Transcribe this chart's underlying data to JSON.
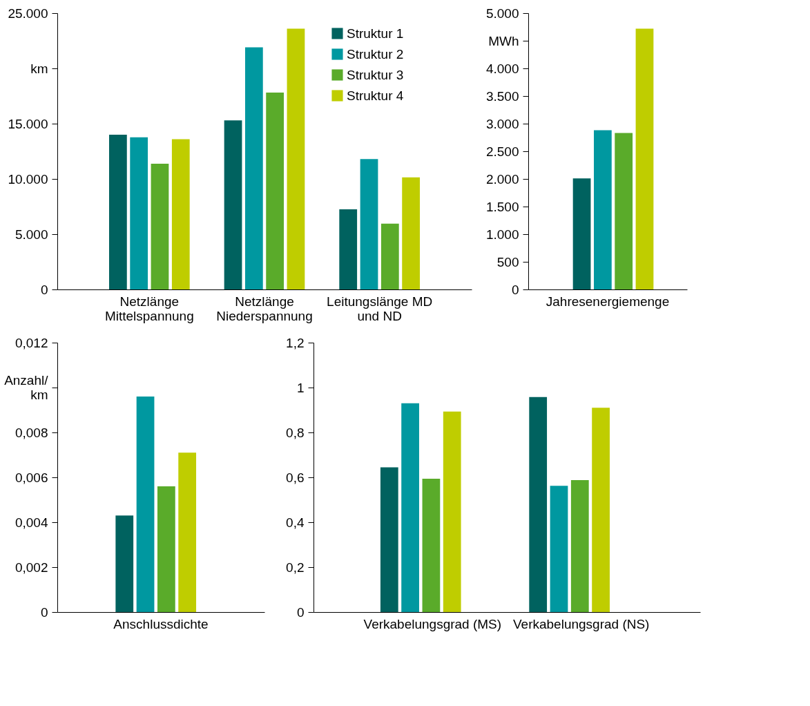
{
  "chart_data": [
    {
      "type": "bar",
      "categories": [
        "Netzlänge\nMittelspannung",
        "Netzlänge\nNiederspannung",
        "Leitungslänge MD\nund ND"
      ],
      "series": [
        {
          "name": "Struktur 1",
          "color": "#00625f",
          "values": [
            14000,
            15300,
            7250
          ]
        },
        {
          "name": "Struktur 2",
          "color": "#0098a0",
          "values": [
            13770,
            21900,
            11790
          ]
        },
        {
          "name": "Struktur 3",
          "color": "#5aab2a",
          "values": [
            11380,
            17810,
            5950
          ]
        },
        {
          "name": "Struktur 4",
          "color": "#bfcd00",
          "values": [
            13590,
            23590,
            10140
          ]
        }
      ],
      "ylim": [
        0,
        25000
      ],
      "yticks": [
        {
          "value": 0,
          "label": "0"
        },
        {
          "value": 5000,
          "label": "5.000"
        },
        {
          "value": 10000,
          "label": "10.000"
        },
        {
          "value": 15000,
          "label": "15.000"
        },
        {
          "value": 20000,
          "label": "km"
        },
        {
          "value": 25000,
          "label": "25.000"
        }
      ],
      "grid": false,
      "legend": "top right"
    },
    {
      "type": "bar",
      "categories": [
        "Jahresenergiemenge"
      ],
      "series": [
        {
          "color": "#00625f",
          "values": [
            2010
          ]
        },
        {
          "color": "#0098a0",
          "values": [
            2880
          ]
        },
        {
          "color": "#5aab2a",
          "values": [
            2830
          ]
        },
        {
          "color": "#bfcd00",
          "values": [
            4720
          ]
        }
      ],
      "ylim": [
        0,
        5000
      ],
      "yticks": [
        {
          "value": 0,
          "label": "0"
        },
        {
          "value": 500,
          "label": "500"
        },
        {
          "value": 1000,
          "label": "1.000"
        },
        {
          "value": 1500,
          "label": "1.500"
        },
        {
          "value": 2000,
          "label": "2.000"
        },
        {
          "value": 2500,
          "label": "2.500"
        },
        {
          "value": 3000,
          "label": "3.000"
        },
        {
          "value": 3500,
          "label": "3.500"
        },
        {
          "value": 4000,
          "label": "4.000"
        },
        {
          "value": 4500,
          "label": "MWh"
        },
        {
          "value": 5000,
          "label": "5.000"
        }
      ],
      "grid": false,
      "legend": false
    },
    {
      "type": "bar",
      "categories": [
        "Anschlussdichte"
      ],
      "series": [
        {
          "color": "#00625f",
          "values": [
            0.0043
          ]
        },
        {
          "color": "#0098a0",
          "values": [
            0.0096
          ]
        },
        {
          "color": "#5aab2a",
          "values": [
            0.0056
          ]
        },
        {
          "color": "#bfcd00",
          "values": [
            0.0071
          ]
        }
      ],
      "ylim": [
        0,
        0.012
      ],
      "yticks": [
        {
          "value": 0,
          "label": "0"
        },
        {
          "value": 0.002,
          "label": "0,002"
        },
        {
          "value": 0.004,
          "label": "0,004"
        },
        {
          "value": 0.006,
          "label": "0,006"
        },
        {
          "value": 0.008,
          "label": "0,008"
        },
        {
          "value": 0.01,
          "label": "Anzahl/\nkm"
        },
        {
          "value": 0.012,
          "label": "0,012"
        }
      ],
      "grid": false,
      "legend": false
    },
    {
      "type": "bar",
      "categories": [
        "Verkabelungsgrad (MS)",
        "Verkabelungsgrad (NS)"
      ],
      "series": [
        {
          "color": "#00625f",
          "values": [
            0.645,
            0.958
          ]
        },
        {
          "color": "#0098a0",
          "values": [
            0.93,
            0.562
          ]
        },
        {
          "color": "#5aab2a",
          "values": [
            0.594,
            0.588
          ]
        },
        {
          "color": "#bfcd00",
          "values": [
            0.893,
            0.91
          ]
        }
      ],
      "ylim": [
        0,
        1.2
      ],
      "yticks": [
        {
          "value": 0,
          "label": "0"
        },
        {
          "value": 0.2,
          "label": "0,2"
        },
        {
          "value": 0.4,
          "label": "0,4"
        },
        {
          "value": 0.6,
          "label": "0,6"
        },
        {
          "value": 0.8,
          "label": "0,8"
        },
        {
          "value": 1,
          "label": "1"
        },
        {
          "value": 1.2,
          "label": "1,2"
        }
      ],
      "grid": false,
      "legend": false
    }
  ]
}
